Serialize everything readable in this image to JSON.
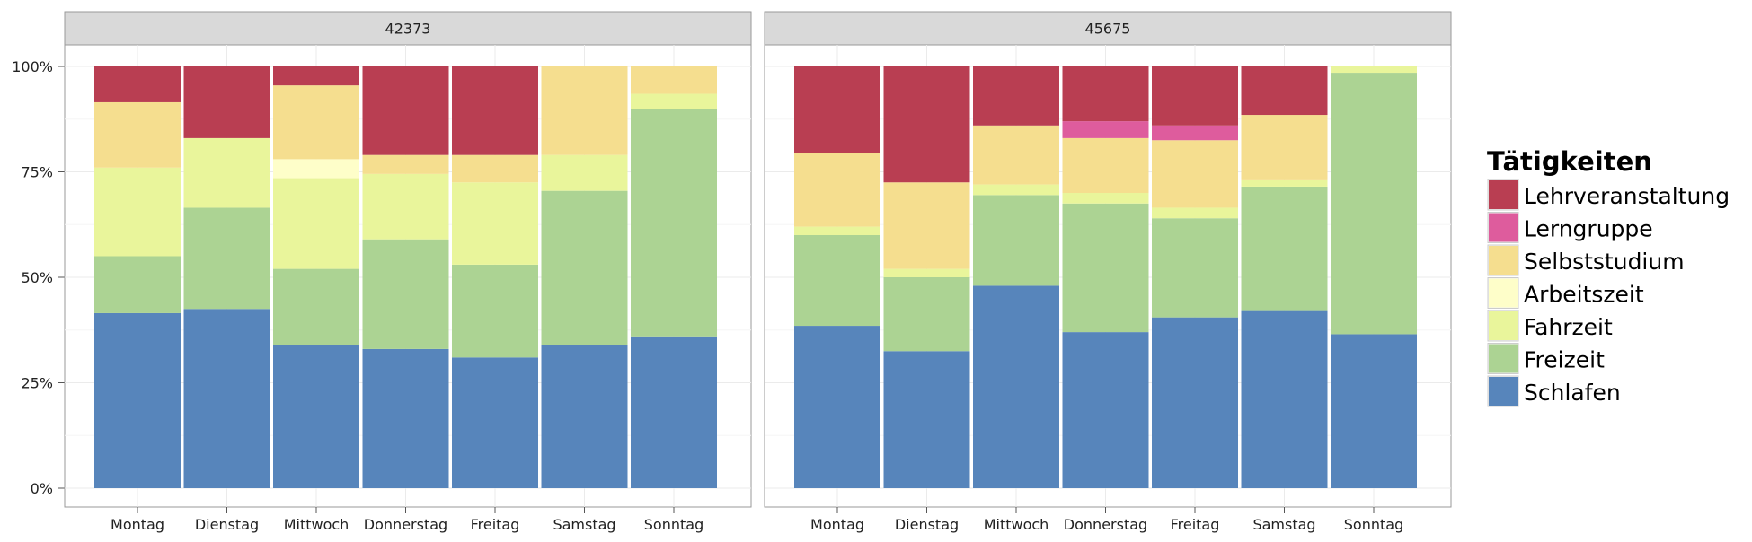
{
  "chart_data": {
    "type": "bar",
    "stacked": true,
    "normalized": true,
    "categories": [
      "Montag",
      "Dienstag",
      "Mittwoch",
      "Donnerstag",
      "Freitag",
      "Samstag",
      "Sonntag"
    ],
    "yticks": [
      "0%",
      "25%",
      "50%",
      "75%",
      "100%"
    ],
    "ylim": [
      0,
      1
    ],
    "grid": true,
    "legend_position": "right",
    "legend": {
      "title": "Tätigkeiten",
      "items": [
        {
          "name": "Lehrveranstaltung",
          "color": "#B93E52"
        },
        {
          "name": "Lerngruppe",
          "color": "#DE5C9D"
        },
        {
          "name": "Selbststudium",
          "color": "#F5DE8F"
        },
        {
          "name": "Arbeitszeit",
          "color": "#FEFEC9"
        },
        {
          "name": "Fahrzeit",
          "color": "#E9F59B"
        },
        {
          "name": "Freizeit",
          "color": "#ACD393"
        },
        {
          "name": "Schlafen",
          "color": "#5785BB"
        }
      ]
    },
    "panels": [
      {
        "title": "42373",
        "series": [
          {
            "name": "Schlafen",
            "values": [
              0.415,
              0.425,
              0.34,
              0.33,
              0.31,
              0.34,
              0.36
            ]
          },
          {
            "name": "Freizeit",
            "values": [
              0.135,
              0.24,
              0.18,
              0.26,
              0.22,
              0.365,
              0.54
            ]
          },
          {
            "name": "Fahrzeit",
            "values": [
              0.21,
              0.165,
              0.215,
              0.155,
              0.195,
              0.085,
              0.035
            ]
          },
          {
            "name": "Arbeitszeit",
            "values": [
              0,
              0,
              0.045,
              0,
              0,
              0,
              0
            ]
          },
          {
            "name": "Selbststudium",
            "values": [
              0.155,
              0,
              0.175,
              0.045,
              0.065,
              0.21,
              0.065
            ]
          },
          {
            "name": "Lerngruppe",
            "values": [
              0,
              0,
              0,
              0,
              0,
              0,
              0
            ]
          },
          {
            "name": "Lehrveranstaltung",
            "values": [
              0.085,
              0.17,
              0.045,
              0.21,
              0.21,
              0,
              0
            ]
          }
        ]
      },
      {
        "title": "45675",
        "series": [
          {
            "name": "Schlafen",
            "values": [
              0.385,
              0.325,
              0.48,
              0.37,
              0.405,
              0.42,
              0.365
            ]
          },
          {
            "name": "Freizeit",
            "values": [
              0.215,
              0.175,
              0.215,
              0.305,
              0.235,
              0.295,
              0.62
            ]
          },
          {
            "name": "Fahrzeit",
            "values": [
              0.02,
              0.02,
              0.025,
              0.025,
              0.025,
              0.015,
              0.015
            ]
          },
          {
            "name": "Arbeitszeit",
            "values": [
              0,
              0,
              0,
              0,
              0,
              0,
              0
            ]
          },
          {
            "name": "Selbststudium",
            "values": [
              0.175,
              0.205,
              0.14,
              0.13,
              0.16,
              0.155,
              0
            ]
          },
          {
            "name": "Lerngruppe",
            "values": [
              0,
              0,
              0,
              0.04,
              0.035,
              0,
              0
            ]
          },
          {
            "name": "Lehrveranstaltung",
            "values": [
              0.205,
              0.275,
              0.14,
              0.13,
              0.14,
              0.115,
              0
            ]
          }
        ]
      }
    ]
  }
}
